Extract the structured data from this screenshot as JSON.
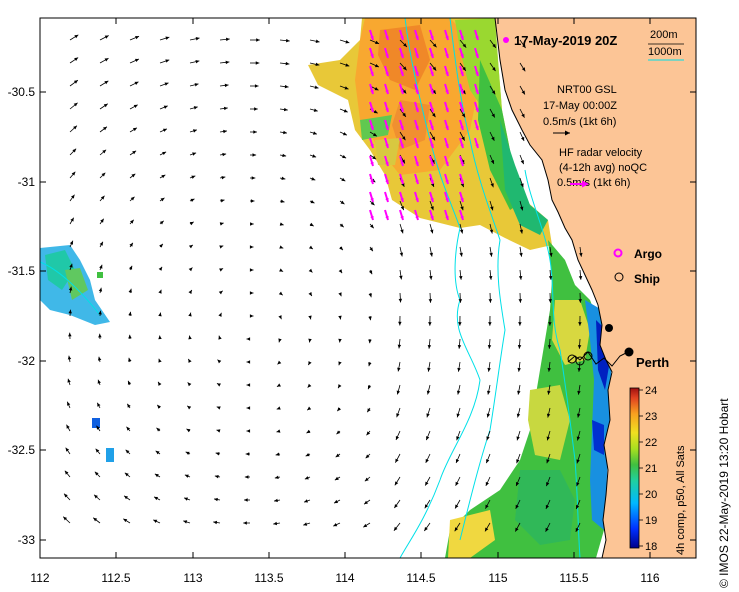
{
  "map": {
    "title": "17-May-2019 20Z",
    "x_ticks": [
      "112",
      "112.5",
      "113",
      "113.5",
      "114",
      "114.5",
      "115",
      "115.5",
      "116"
    ],
    "y_ticks": [
      "-30.5",
      "-31",
      "-31.5",
      "-32",
      "-32.5",
      "-33"
    ],
    "contours": {
      "shallow": "200m",
      "deep": "1000m"
    },
    "model_note": [
      "NRT00 GSL",
      "17-May 00:00Z",
      "0.5m/s (1kt 6h)"
    ],
    "radar_note": [
      "HF radar velocity",
      "(4-12h avg) noQC",
      "0.5m/s (1kt 6h)"
    ],
    "legend": {
      "argo": "Argo",
      "ship": "Ship"
    },
    "city": "Perth",
    "colorbar": {
      "ticks": [
        "24",
        "23",
        "22",
        "21",
        "20",
        "19",
        "18"
      ],
      "label": "4h comp, p50, All Sats"
    },
    "credit": "© IMOS 22-May-2019 13:20 Hobart",
    "colors": {
      "land": "#fcc596",
      "contour": "#00e0e8",
      "radar_arrow": "#ff00ff",
      "model_arrow": "#000000"
    }
  }
}
